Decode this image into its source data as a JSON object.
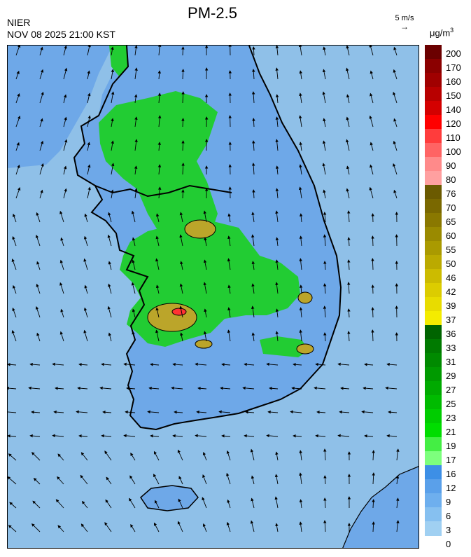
{
  "title": "PM-2.5",
  "agency": "NIER",
  "timestamp": "NOV 08 2025 21:00 KST",
  "wind_reference": {
    "label": "5 m/s",
    "arrow": "→"
  },
  "unit": {
    "base": "μg/m",
    "exponent": "3"
  },
  "legend": {
    "labels": [
      "200",
      "170",
      "160",
      "150",
      "140",
      "120",
      "110",
      "100",
      "90",
      "80",
      "76",
      "70",
      "65",
      "60",
      "55",
      "50",
      "46",
      "42",
      "39",
      "37",
      "36",
      "33",
      "31",
      "29",
      "27",
      "25",
      "23",
      "21",
      "19",
      "17",
      "16",
      "12",
      "9",
      "6",
      "3",
      "0"
    ],
    "colors": [
      "#6b0000",
      "#8b0000",
      "#a00000",
      "#b80000",
      "#d40000",
      "#ff0000",
      "#ff3c3c",
      "#ff6464",
      "#ff8a8a",
      "#ffa0a0",
      "#6b5a00",
      "#7a6800",
      "#8a7800",
      "#9a8a00",
      "#aa9a00",
      "#bbaa00",
      "#ccbb00",
      "#dccc00",
      "#e8dc00",
      "#f4ec00",
      "#006400",
      "#007a00",
      "#008a00",
      "#009a00",
      "#00aa00",
      "#00bb00",
      "#00cc00",
      "#00dd00",
      "#44ee44",
      "#7dff7d",
      "#3d8fe6",
      "#5aa0ea",
      "#6eafee",
      "#86c0f0",
      "#a0d0f2"
    ]
  },
  "map": {
    "background_levels": {
      "sea": "#8fc0e8",
      "land_low": "#6ea8e8",
      "green": "#22cc33",
      "yellow": "#bba52a",
      "red": "#ff3333"
    },
    "coastline_color": "#000000",
    "arrow_color": "#000000"
  }
}
